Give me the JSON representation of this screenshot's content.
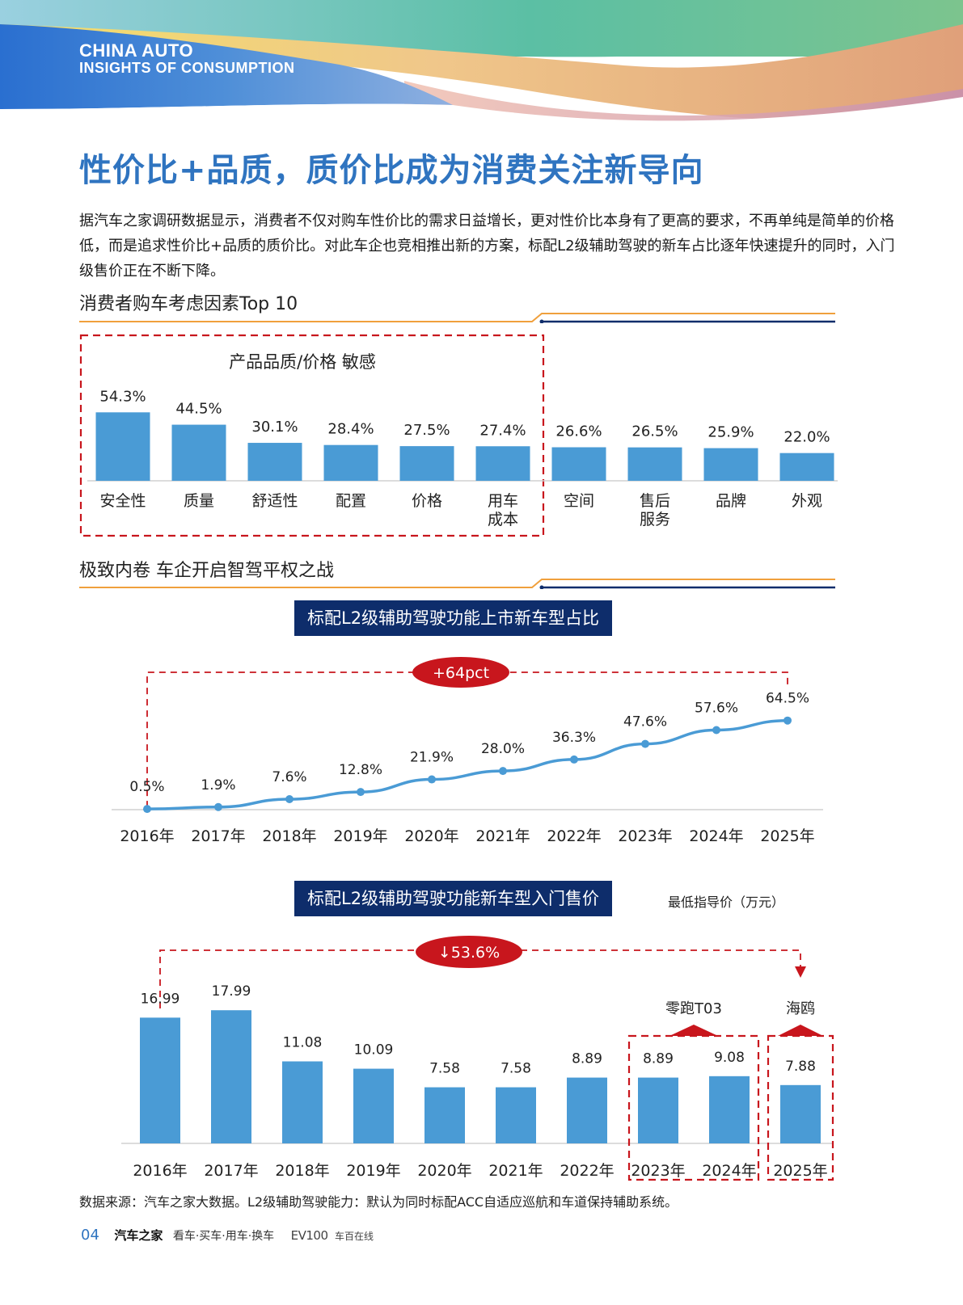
{
  "header": {
    "brand_line1": "CHINA AUTO",
    "brand_line2": "INSIGHTS OF CONSUMPTION"
  },
  "title": "性价比+品质，质价比成为消费关注新导向",
  "intro": "据汽车之家调研数据显示，消费者不仅对购车性价比的需求日益增长，更对性价比本身有了更高的要求，不再单纯是简单的价格低，而是追求性价比+品质的质价比。对此车企也竞相推出新的方案，标配L2级辅助驾驶的新车占比逐年快速提升的同时，入门级售价正在不断下降。",
  "colors": {
    "bar": "#4a9bd5",
    "accent_red": "#c8161d",
    "title_blue": "#2f74c0",
    "navy": "#0e2d6b",
    "orange_line": "#f0a03c"
  },
  "section1": {
    "title": "消费者购车考虑因素Top 10"
  },
  "section2": {
    "title": "极致内卷 车企开启智驾平权之战"
  },
  "chart_data": [
    {
      "type": "bar",
      "title": "消费者购车考虑因素Top 10",
      "categories": [
        "安全性",
        "质量",
        "舒适性",
        "配置",
        "价格",
        "用车\n成本",
        "空间",
        "售后\n服务",
        "品牌",
        "外观"
      ],
      "values": [
        54.3,
        44.5,
        30.1,
        28.4,
        27.5,
        27.4,
        26.6,
        26.5,
        25.9,
        22.0
      ],
      "value_labels": [
        "54.3%",
        "44.5%",
        "30.1%",
        "28.4%",
        "27.5%",
        "27.4%",
        "26.6%",
        "26.5%",
        "25.9%",
        "22.0%"
      ],
      "ylim": [
        0,
        60
      ],
      "annotation": "产品品质/价格 敏感",
      "highlight_categories": [
        "安全性",
        "质量",
        "舒适性",
        "配置",
        "价格",
        "用车\n成本"
      ]
    },
    {
      "type": "line",
      "title": "标配L2级辅助驾驶功能上市新车型占比",
      "categories": [
        "2016年",
        "2017年",
        "2018年",
        "2019年",
        "2020年",
        "2021年",
        "2022年",
        "2023年",
        "2024年",
        "2025年"
      ],
      "values": [
        0.5,
        1.9,
        7.6,
        12.8,
        21.9,
        28.0,
        36.3,
        47.6,
        57.6,
        64.5
      ],
      "value_labels": [
        "0.5%",
        "1.9%",
        "7.6%",
        "12.8%",
        "21.9%",
        "28.0%",
        "36.3%",
        "47.6%",
        "57.6%",
        "64.5%"
      ],
      "ylim": [
        0,
        70
      ],
      "annotation": "+64pct"
    },
    {
      "type": "bar",
      "title": "标配L2级辅助驾驶功能新车型入门售价",
      "unit_label": "最低指导价（万元）",
      "categories": [
        "2016年",
        "2017年",
        "2018年",
        "2019年",
        "2020年",
        "2021年",
        "2022年",
        "2023年",
        "2024年",
        "2025年"
      ],
      "values": [
        16.99,
        17.99,
        11.08,
        10.09,
        7.58,
        7.58,
        8.89,
        8.89,
        9.08,
        7.88
      ],
      "value_labels": [
        "16.99",
        "17.99",
        "11.08",
        "10.09",
        "7.58",
        "7.58",
        "8.89",
        "8.89",
        "9.08",
        "7.88"
      ],
      "ylim": [
        0,
        20
      ],
      "annotation": "↓53.6%",
      "callouts": [
        {
          "label": "零跑T03",
          "categories": [
            "2023年",
            "2024年"
          ]
        },
        {
          "label": "海鸥",
          "categories": [
            "2025年"
          ]
        }
      ]
    }
  ],
  "source": "数据来源：汽车之家大数据。L2级辅助驾驶能力：默认为同时标配ACC自适应巡航和车道保持辅助系统。",
  "footer": {
    "page_number": "04",
    "logo": "汽车之家",
    "slogan": "看车·买车·用车·换车",
    "ev_logo": "EV100",
    "ev_sub": "车百在线"
  }
}
